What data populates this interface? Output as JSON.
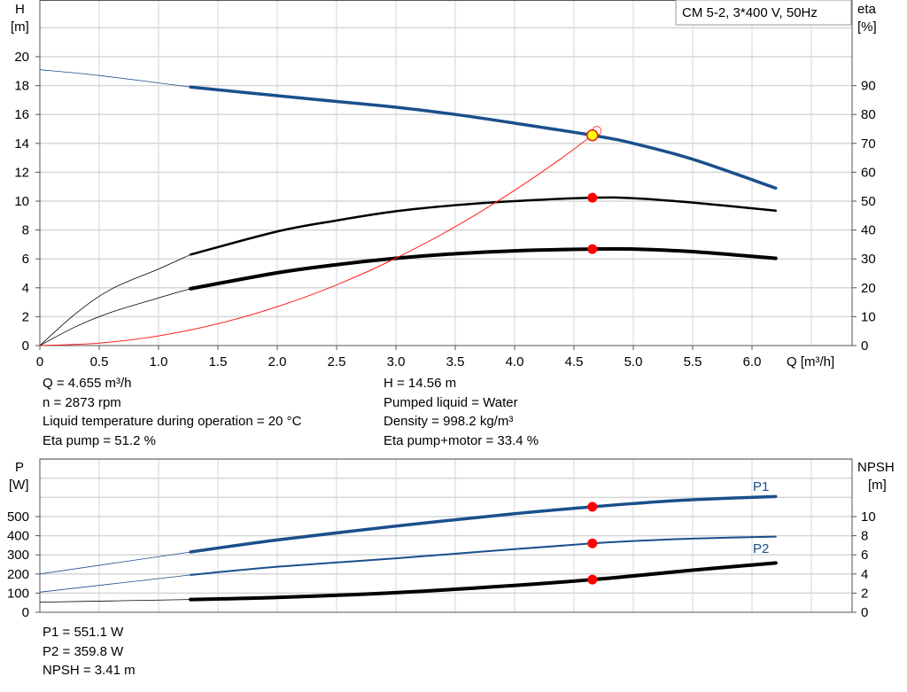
{
  "chart_data": [
    {
      "type": "line",
      "title": "CM 5-2, 3*400 V, 50Hz",
      "xlabel": "Q [m³/h]",
      "ylabel_left": [
        "H",
        "[m]"
      ],
      "ylabel_right": [
        "eta",
        "[%]"
      ],
      "xlim": [
        0,
        6.84
      ],
      "ylim_left": [
        0,
        23.9
      ],
      "ylim_right": [
        0,
        119.5
      ],
      "grid": true,
      "x_ticks": [
        "0",
        "0.5",
        "1.0",
        "1.5",
        "2.0",
        "2.5",
        "3.0",
        "3.5",
        "4.0",
        "4.5",
        "5.0",
        "5.5",
        "6.0"
      ],
      "y_ticks_left": [
        "0",
        "2",
        "4",
        "6",
        "8",
        "10",
        "12",
        "14",
        "16",
        "18",
        "20"
      ],
      "y_ticks_right": [
        "0",
        "10",
        "20",
        "30",
        "40",
        "50",
        "60",
        "70",
        "80",
        "90"
      ],
      "operating_range_start_q": 1.27,
      "series": [
        {
          "key": "H",
          "axis": "left",
          "color": "#1a4f8b",
          "width": 3.5,
          "points": [
            [
              0,
              19.1
            ],
            [
              0.5,
              18.7
            ],
            [
              1.27,
              17.9
            ],
            [
              2,
              17.3
            ],
            [
              2.5,
              16.9
            ],
            [
              3,
              16.5
            ],
            [
              3.5,
              16.0
            ],
            [
              4,
              15.4
            ],
            [
              4.655,
              14.56
            ],
            [
              5,
              14.0
            ],
            [
              5.5,
              12.9
            ],
            [
              6.2,
              10.9
            ]
          ]
        },
        {
          "key": "eta_pump",
          "axis": "right",
          "color": "#000000",
          "width": 2.5,
          "points": [
            [
              0,
              0
            ],
            [
              0.3,
              11
            ],
            [
              0.6,
              19.5
            ],
            [
              1,
              26.5
            ],
            [
              1.27,
              31.5
            ],
            [
              2,
              39.5
            ],
            [
              2.5,
              43.3
            ],
            [
              3,
              46.5
            ],
            [
              3.5,
              48.6
            ],
            [
              4,
              50
            ],
            [
              4.655,
              51.2
            ],
            [
              5,
              51
            ],
            [
              5.5,
              49.5
            ],
            [
              6.2,
              46.7
            ]
          ]
        },
        {
          "key": "eta_pump_motor",
          "axis": "right",
          "color": "#000000",
          "width": 4,
          "points": [
            [
              0,
              0
            ],
            [
              0.3,
              6.5
            ],
            [
              0.6,
              11.5
            ],
            [
              1,
              16.5
            ],
            [
              1.27,
              19.7
            ],
            [
              2,
              25.2
            ],
            [
              2.5,
              28
            ],
            [
              3,
              30.2
            ],
            [
              3.5,
              31.8
            ],
            [
              4,
              32.8
            ],
            [
              4.655,
              33.4
            ],
            [
              5,
              33.4
            ],
            [
              5.5,
              32.5
            ],
            [
              6.2,
              30.2
            ]
          ]
        },
        {
          "key": "system_curve",
          "axis": "left",
          "color": "#ff2020",
          "width": 1,
          "points": [
            [
              0,
              0
            ],
            [
              0.5,
              0.17
            ],
            [
              1,
              0.67
            ],
            [
              1.5,
              1.51
            ],
            [
              2,
              2.69
            ],
            [
              2.5,
              4.2
            ],
            [
              3,
              6.05
            ],
            [
              3.5,
              8.23
            ],
            [
              4,
              10.75
            ],
            [
              4.4,
              13.0
            ],
            [
              4.655,
              14.56
            ]
          ]
        }
      ],
      "operating_point": {
        "q": 4.655,
        "h": 14.56,
        "eta_pump": 51.2,
        "eta_pump_motor": 33.4,
        "marker_color": "#ffff00"
      }
    },
    {
      "type": "line",
      "xlim": [
        0,
        6.84
      ],
      "ylabel_left": [
        "P",
        "[W]"
      ],
      "ylabel_right": [
        "NPSH",
        "[m]"
      ],
      "ylim_left": [
        0,
        800
      ],
      "ylim_right": [
        0,
        16
      ],
      "grid": true,
      "y_ticks_left": [
        "0",
        "100",
        "200",
        "300",
        "400",
        "500"
      ],
      "y_ticks_right": [
        "0",
        "2",
        "4",
        "6",
        "8",
        "10"
      ],
      "operating_range_start_q": 1.27,
      "series": [
        {
          "key": "P1",
          "name": "P1",
          "axis": "left",
          "color": "#1a4f8b",
          "width": 3.5,
          "points": [
            [
              0,
              200
            ],
            [
              1.27,
              315
            ],
            [
              2,
              378
            ],
            [
              3,
              450
            ],
            [
              4,
              515
            ],
            [
              4.655,
              551.1
            ],
            [
              5,
              568
            ],
            [
              5.5,
              588
            ],
            [
              6.2,
              605
            ]
          ]
        },
        {
          "key": "P2",
          "name": "P2",
          "axis": "left",
          "color": "#1a4f8b",
          "width": 2,
          "points": [
            [
              0,
              105
            ],
            [
              1.27,
              195
            ],
            [
              2,
              238
            ],
            [
              3,
              282
            ],
            [
              4,
              330
            ],
            [
              4.655,
              359.8
            ],
            [
              5,
              372
            ],
            [
              5.5,
              385
            ],
            [
              6.2,
              395
            ]
          ]
        },
        {
          "key": "NPSH",
          "axis": "right",
          "color": "#000000",
          "width": 4,
          "points": [
            [
              0,
              1.05
            ],
            [
              1.27,
              1.33
            ],
            [
              2,
              1.55
            ],
            [
              3,
              2.05
            ],
            [
              4,
              2.8
            ],
            [
              4.655,
              3.41
            ],
            [
              5,
              3.8
            ],
            [
              5.5,
              4.4
            ],
            [
              6.2,
              5.15
            ]
          ]
        }
      ],
      "operating_point": {
        "q": 4.655,
        "p1": 551.1,
        "p2": 359.8,
        "npsh": 3.41
      }
    }
  ],
  "info_top": {
    "left": [
      "Q = 4.655 m³/h",
      "n = 2873 rpm",
      "Liquid temperature during operation = 20 °C",
      "Eta pump = 51.2 %"
    ],
    "right": [
      "H = 14.56 m",
      "Pumped liquid = Water",
      "Density = 998.2 kg/m³",
      "Eta pump+motor = 33.4 %"
    ]
  },
  "info_bottom": [
    "P1 = 551.1 W",
    "P2 = 359.8 W",
    "NPSH = 3.41 m"
  ]
}
